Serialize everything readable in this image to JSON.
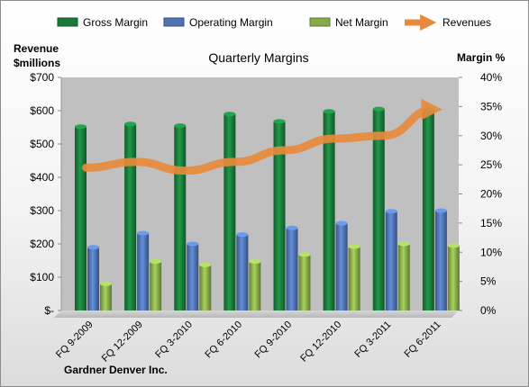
{
  "company": "Gardner Denver Inc.",
  "colors": {
    "gross_margin": "#1a7a3a",
    "operating_margin": "#4f72b0",
    "net_margin": "#86a94a",
    "revenues": "#e88a3c",
    "plot_background": "#c0c0c0"
  },
  "chart_data": {
    "type": "bar",
    "title": "Quarterly Margins",
    "left_axis_label": [
      "Revenue",
      "$millions"
    ],
    "right_axis_label": "Margin %",
    "left_ticks": [
      "$-",
      "$100",
      "$200",
      "$300",
      "$400",
      "$500",
      "$600",
      "$700"
    ],
    "right_ticks": [
      "0%",
      "5%",
      "10%",
      "15%",
      "20%",
      "25%",
      "30%",
      "35%",
      "40%"
    ],
    "ylim_left": [
      0,
      700
    ],
    "ylim_right": [
      0,
      40
    ],
    "categories": [
      "FQ 9-2009",
      "FQ 12-2009",
      "FQ 3-2010",
      "FQ 6-2010",
      "FQ 9-2010",
      "FQ 12-2010",
      "FQ 3-2011",
      "FQ 6-2011"
    ],
    "series": [
      {
        "name": "Gross Margin",
        "axis": "left",
        "kind": "bar",
        "color_key": "gross_margin",
        "values": [
          552,
          560,
          555,
          590,
          568,
          598,
          605,
          602
        ]
      },
      {
        "name": "Operating Margin",
        "axis": "left",
        "kind": "bar",
        "color_key": "operating_margin",
        "values": [
          190,
          232,
          200,
          228,
          248,
          262,
          298,
          300
        ]
      },
      {
        "name": "Net Margin",
        "axis": "left",
        "kind": "bar",
        "color_key": "net_margin",
        "values": [
          80,
          147,
          137,
          147,
          168,
          192,
          200,
          195
        ]
      },
      {
        "name": "Revenues",
        "axis": "right",
        "kind": "line",
        "color_key": "revenues",
        "values": [
          24.5,
          25.5,
          24.0,
          25.5,
          27.5,
          29.5,
          30.0,
          34.5
        ]
      }
    ],
    "legend_position": "top",
    "grid": false
  }
}
